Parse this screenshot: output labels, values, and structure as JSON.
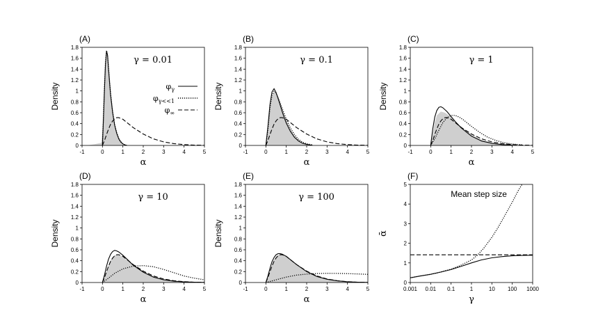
{
  "chart_data": [
    {
      "id": "A",
      "type": "line",
      "panel_label": "(A)",
      "annotation": "γ = 0.01",
      "xlabel": "α",
      "ylabel": "Density",
      "xlim": [
        -1,
        5
      ],
      "ylim": [
        0,
        1.8
      ],
      "x_ticks": [
        "-1",
        "0",
        "1",
        "2",
        "3",
        "4",
        "5"
      ],
      "y_ticks": [
        "0",
        "0.2",
        "0.4",
        "0.6",
        "0.8",
        "1",
        "1.2",
        "1.4",
        "1.6",
        "1.8"
      ],
      "legend": {
        "position": "upper-right",
        "entries": [
          {
            "base": "φ",
            "sub": "γ",
            "style": "solid"
          },
          {
            "base": "φ",
            "sub": "γ<<1",
            "style": "dotted"
          },
          {
            "base": "φ",
            "sub": "∞",
            "style": "dashed"
          }
        ]
      },
      "series": [
        {
          "style": "shaded",
          "x": [
            -0.8,
            -0.4,
            -0.05,
            0.05,
            0.12,
            0.18,
            0.22,
            0.26,
            0.3,
            0.34,
            0.4,
            0.5,
            0.6,
            0.7,
            0.8,
            0.9,
            1.0,
            1.1
          ],
          "y": [
            0,
            0.02,
            0.05,
            0.55,
            1.1,
            1.55,
            1.72,
            1.62,
            1.35,
            1.15,
            0.9,
            0.6,
            0.38,
            0.22,
            0.12,
            0.06,
            0.02,
            0
          ]
        },
        {
          "style": "solid",
          "x": [
            0,
            0.05,
            0.1,
            0.15,
            0.2,
            0.25,
            0.3,
            0.35,
            0.4,
            0.5,
            0.6,
            0.7,
            0.8,
            0.9,
            1.0,
            1.1,
            1.2
          ],
          "y": [
            0,
            0.5,
            1.05,
            1.5,
            1.73,
            1.65,
            1.4,
            1.15,
            0.92,
            0.6,
            0.37,
            0.22,
            0.12,
            0.06,
            0.03,
            0.01,
            0
          ]
        },
        {
          "style": "dotted",
          "x": [
            0,
            0.05,
            0.1,
            0.15,
            0.2,
            0.25,
            0.3,
            0.35,
            0.4,
            0.5,
            0.6,
            0.7,
            0.8,
            0.9,
            1.0,
            1.1,
            1.2
          ],
          "y": [
            0,
            0.55,
            1.1,
            1.52,
            1.74,
            1.66,
            1.42,
            1.17,
            0.94,
            0.62,
            0.38,
            0.23,
            0.13,
            0.07,
            0.03,
            0.01,
            0
          ]
        },
        {
          "style": "dashed",
          "x": [
            0,
            0.1,
            0.2,
            0.3,
            0.4,
            0.5,
            0.6,
            0.7,
            0.8,
            1.0,
            1.2,
            1.5,
            2.0,
            2.5,
            3.0,
            3.5,
            4.0,
            4.5,
            5.0
          ],
          "y": [
            0,
            0.09,
            0.2,
            0.3,
            0.39,
            0.45,
            0.49,
            0.51,
            0.51,
            0.48,
            0.42,
            0.33,
            0.21,
            0.12,
            0.065,
            0.033,
            0.015,
            0.007,
            0.003
          ]
        }
      ]
    },
    {
      "id": "B",
      "type": "line",
      "panel_label": "(B)",
      "annotation": "γ = 0.1",
      "xlabel": "α",
      "ylabel": "Density",
      "xlim": [
        -1,
        5
      ],
      "ylim": [
        0,
        1.8
      ],
      "x_ticks": [
        "-1",
        "0",
        "1",
        "2",
        "3",
        "4",
        "5"
      ],
      "y_ticks": [
        "0",
        "0.2",
        "0.4",
        "0.6",
        "0.8",
        "1",
        "1.2",
        "1.4",
        "1.6",
        "1.8"
      ],
      "series": [
        {
          "style": "shaded",
          "x": [
            0,
            0.1,
            0.2,
            0.3,
            0.4,
            0.5,
            0.6,
            0.7,
            0.8,
            0.9,
            1.0,
            1.2,
            1.4,
            1.6,
            1.8,
            2.0,
            2.3
          ],
          "y": [
            0,
            0.3,
            0.65,
            0.9,
            0.98,
            0.95,
            0.87,
            0.78,
            0.67,
            0.56,
            0.46,
            0.3,
            0.18,
            0.1,
            0.05,
            0.02,
            0
          ]
        },
        {
          "style": "solid",
          "x": [
            0,
            0.1,
            0.2,
            0.3,
            0.4,
            0.5,
            0.6,
            0.7,
            0.8,
            0.9,
            1.0,
            1.2,
            1.4,
            1.6,
            1.8,
            2.0,
            2.3
          ],
          "y": [
            0,
            0.35,
            0.75,
            0.98,
            1.04,
            0.97,
            0.86,
            0.74,
            0.62,
            0.51,
            0.41,
            0.26,
            0.15,
            0.08,
            0.04,
            0.02,
            0
          ]
        },
        {
          "style": "dotted",
          "x": [
            0,
            0.1,
            0.2,
            0.3,
            0.4,
            0.5,
            0.6,
            0.7,
            0.8,
            0.9,
            1.0,
            1.2,
            1.4,
            1.6,
            1.8,
            2.0,
            2.3
          ],
          "y": [
            0,
            0.3,
            0.68,
            0.92,
            0.99,
            0.96,
            0.88,
            0.78,
            0.68,
            0.58,
            0.48,
            0.32,
            0.2,
            0.11,
            0.06,
            0.03,
            0.01
          ]
        },
        {
          "style": "dashed",
          "x": [
            0,
            0.1,
            0.2,
            0.3,
            0.4,
            0.5,
            0.6,
            0.7,
            0.8,
            1.0,
            1.2,
            1.5,
            2.0,
            2.5,
            3.0,
            3.5,
            4.0,
            4.5,
            5.0
          ],
          "y": [
            0,
            0.09,
            0.2,
            0.3,
            0.39,
            0.45,
            0.49,
            0.51,
            0.51,
            0.48,
            0.42,
            0.33,
            0.21,
            0.12,
            0.065,
            0.033,
            0.015,
            0.007,
            0.003
          ]
        }
      ]
    },
    {
      "id": "C",
      "type": "line",
      "panel_label": "(C)",
      "annotation": "γ = 1",
      "xlabel": "α",
      "ylabel": "Density",
      "xlim": [
        -1,
        5
      ],
      "ylim": [
        0,
        1.8
      ],
      "x_ticks": [
        "-1",
        "0",
        "1",
        "2",
        "3",
        "4",
        "5"
      ],
      "y_ticks": [
        "0",
        "0.2",
        "0.4",
        "0.6",
        "0.8",
        "1",
        "1.2",
        "1.4",
        "1.6",
        "1.8"
      ],
      "series": [
        {
          "style": "shaded",
          "x": [
            0,
            0.1,
            0.2,
            0.3,
            0.5,
            0.7,
            0.9,
            1.1,
            1.3,
            1.6,
            2.0,
            2.5,
            3.0,
            3.5,
            4.0
          ],
          "y": [
            0,
            0.2,
            0.42,
            0.55,
            0.62,
            0.6,
            0.55,
            0.48,
            0.41,
            0.31,
            0.2,
            0.1,
            0.05,
            0.02,
            0
          ]
        },
        {
          "style": "solid",
          "x": [
            0,
            0.1,
            0.2,
            0.3,
            0.4,
            0.5,
            0.6,
            0.8,
            1.0,
            1.2,
            1.5,
            2.0,
            2.5,
            3.0,
            3.5,
            4.0
          ],
          "y": [
            0,
            0.3,
            0.52,
            0.64,
            0.7,
            0.71,
            0.69,
            0.62,
            0.53,
            0.44,
            0.32,
            0.17,
            0.08,
            0.04,
            0.015,
            0.005
          ]
        },
        {
          "style": "dotted",
          "x": [
            0,
            0.2,
            0.4,
            0.6,
            0.8,
            1.0,
            1.2,
            1.4,
            1.6,
            1.8,
            2.0,
            2.4,
            2.8,
            3.2,
            3.6,
            4.0,
            4.5
          ],
          "y": [
            0,
            0.12,
            0.28,
            0.42,
            0.51,
            0.55,
            0.55,
            0.52,
            0.47,
            0.41,
            0.35,
            0.24,
            0.15,
            0.09,
            0.05,
            0.025,
            0.01
          ]
        },
        {
          "style": "dashed",
          "x": [
            0,
            0.1,
            0.2,
            0.3,
            0.4,
            0.5,
            0.6,
            0.7,
            0.8,
            1.0,
            1.2,
            1.5,
            2.0,
            2.5,
            3.0,
            3.5,
            4.0,
            4.5,
            5.0
          ],
          "y": [
            0,
            0.09,
            0.2,
            0.3,
            0.39,
            0.45,
            0.49,
            0.51,
            0.51,
            0.48,
            0.42,
            0.33,
            0.21,
            0.12,
            0.065,
            0.033,
            0.015,
            0.007,
            0.003
          ]
        }
      ]
    },
    {
      "id": "D",
      "type": "line",
      "panel_label": "(D)",
      "annotation": "γ = 10",
      "xlabel": "α",
      "ylabel": "Density",
      "xlim": [
        -1,
        5
      ],
      "ylim": [
        0,
        1.8
      ],
      "x_ticks": [
        "-1",
        "0",
        "1",
        "2",
        "3",
        "4",
        "5"
      ],
      "y_ticks": [
        "0",
        "0.2",
        "0.4",
        "0.6",
        "0.8",
        "1",
        "1.2",
        "1.4",
        "1.6",
        "1.8"
      ],
      "series": [
        {
          "style": "shaded",
          "x": [
            0,
            0.1,
            0.2,
            0.3,
            0.4,
            0.5,
            0.6,
            0.7,
            0.8,
            1.0,
            1.2,
            1.5,
            2.0,
            2.5,
            3.0,
            3.5,
            4.0,
            4.5,
            5.0
          ],
          "y": [
            0,
            0.1,
            0.22,
            0.32,
            0.41,
            0.47,
            0.5,
            0.51,
            0.5,
            0.47,
            0.41,
            0.32,
            0.2,
            0.11,
            0.06,
            0.03,
            0.013,
            0.006,
            0.002
          ]
        },
        {
          "style": "solid",
          "x": [
            0,
            0.1,
            0.2,
            0.3,
            0.4,
            0.5,
            0.6,
            0.7,
            0.8,
            1.0,
            1.2,
            1.5,
            2.0,
            2.5,
            3.0,
            3.5,
            4.0,
            4.5,
            5.0
          ],
          "y": [
            0,
            0.14,
            0.3,
            0.43,
            0.52,
            0.57,
            0.59,
            0.58,
            0.56,
            0.5,
            0.43,
            0.32,
            0.19,
            0.1,
            0.05,
            0.024,
            0.011,
            0.005,
            0.002
          ]
        },
        {
          "style": "dotted",
          "x": [
            0,
            0.3,
            0.6,
            1.0,
            1.5,
            2.0,
            2.5,
            3.0,
            3.5,
            4.0,
            4.5,
            5.0
          ],
          "y": [
            0,
            0.08,
            0.17,
            0.25,
            0.3,
            0.31,
            0.29,
            0.24,
            0.18,
            0.12,
            0.08,
            0.05
          ]
        },
        {
          "style": "dashed",
          "x": [
            0,
            0.1,
            0.2,
            0.3,
            0.4,
            0.5,
            0.6,
            0.7,
            0.8,
            1.0,
            1.2,
            1.5,
            2.0,
            2.5,
            3.0,
            3.5,
            4.0,
            4.5,
            5.0
          ],
          "y": [
            0,
            0.09,
            0.2,
            0.3,
            0.39,
            0.45,
            0.49,
            0.51,
            0.51,
            0.48,
            0.42,
            0.33,
            0.21,
            0.12,
            0.065,
            0.033,
            0.015,
            0.007,
            0.003
          ]
        }
      ]
    },
    {
      "id": "E",
      "type": "line",
      "panel_label": "(E)",
      "annotation": "γ = 100",
      "xlabel": "α",
      "ylabel": "Density",
      "xlim": [
        -1,
        5
      ],
      "ylim": [
        0,
        1.8
      ],
      "x_ticks": [
        "-1",
        "0",
        "1",
        "2",
        "3",
        "4",
        "5"
      ],
      "y_ticks": [
        "0",
        "0.2",
        "0.4",
        "0.6",
        "0.8",
        "1",
        "1.2",
        "1.4",
        "1.6",
        "1.8"
      ],
      "series": [
        {
          "style": "shaded",
          "x": [
            0,
            0.1,
            0.2,
            0.3,
            0.4,
            0.5,
            0.6,
            0.7,
            0.8,
            1.0,
            1.2,
            1.5,
            2.0,
            2.5,
            3.0,
            3.5,
            4.0,
            4.5,
            5.0
          ],
          "y": [
            0,
            0.1,
            0.22,
            0.33,
            0.42,
            0.48,
            0.51,
            0.52,
            0.51,
            0.48,
            0.42,
            0.33,
            0.21,
            0.12,
            0.065,
            0.033,
            0.015,
            0.007,
            0.003
          ]
        },
        {
          "style": "solid",
          "x": [
            0,
            0.1,
            0.2,
            0.3,
            0.4,
            0.5,
            0.6,
            0.7,
            0.8,
            1.0,
            1.2,
            1.5,
            2.0,
            2.5,
            3.0,
            3.5,
            4.0,
            4.5,
            5.0
          ],
          "y": [
            0,
            0.12,
            0.26,
            0.38,
            0.46,
            0.51,
            0.53,
            0.53,
            0.52,
            0.48,
            0.42,
            0.33,
            0.2,
            0.11,
            0.06,
            0.03,
            0.014,
            0.006,
            0.003
          ]
        },
        {
          "style": "dotted",
          "x": [
            0,
            0.5,
            1.0,
            1.5,
            2.0,
            2.5,
            3.0,
            3.5,
            4.0,
            4.5,
            5.0
          ],
          "y": [
            0,
            0.05,
            0.1,
            0.135,
            0.155,
            0.165,
            0.168,
            0.167,
            0.163,
            0.157,
            0.15
          ]
        },
        {
          "style": "dashed",
          "x": [
            0,
            0.1,
            0.2,
            0.3,
            0.4,
            0.5,
            0.6,
            0.7,
            0.8,
            1.0,
            1.2,
            1.5,
            2.0,
            2.5,
            3.0,
            3.5,
            4.0,
            4.5,
            5.0
          ],
          "y": [
            0,
            0.09,
            0.2,
            0.3,
            0.39,
            0.45,
            0.49,
            0.51,
            0.51,
            0.48,
            0.42,
            0.33,
            0.21,
            0.12,
            0.065,
            0.033,
            0.015,
            0.007,
            0.003
          ]
        }
      ]
    },
    {
      "id": "F",
      "type": "line",
      "panel_label": "(F)",
      "annotation": "Mean step size",
      "xlabel": "γ",
      "ylabel": "ᾱ",
      "xscale": "log",
      "xlim": [
        0.001,
        1000
      ],
      "ylim": [
        0,
        5
      ],
      "x_ticks": [
        "0.001",
        "0.01",
        "0.1",
        "1",
        "10",
        "100",
        "1000"
      ],
      "y_ticks": [
        "0",
        "1",
        "2",
        "3",
        "4",
        "5"
      ],
      "series": [
        {
          "style": "solid",
          "x": [
            0.001,
            0.003,
            0.01,
            0.03,
            0.1,
            0.3,
            1,
            3,
            10,
            30,
            100,
            300,
            1000
          ],
          "y": [
            0.24,
            0.33,
            0.42,
            0.53,
            0.66,
            0.82,
            1.0,
            1.15,
            1.26,
            1.32,
            1.36,
            1.38,
            1.39
          ]
        },
        {
          "style": "dotted",
          "x": [
            0.001,
            0.003,
            0.01,
            0.03,
            0.1,
            0.3,
            1,
            2,
            4,
            10,
            20,
            40,
            100,
            200,
            300
          ],
          "y": [
            0.24,
            0.33,
            0.42,
            0.53,
            0.68,
            0.88,
            1.15,
            1.4,
            1.75,
            2.3,
            2.8,
            3.35,
            4.1,
            4.7,
            5.0
          ]
        },
        {
          "style": "dashed",
          "x": [
            0.001,
            1000
          ],
          "y": [
            1.41,
            1.41
          ]
        }
      ]
    }
  ]
}
